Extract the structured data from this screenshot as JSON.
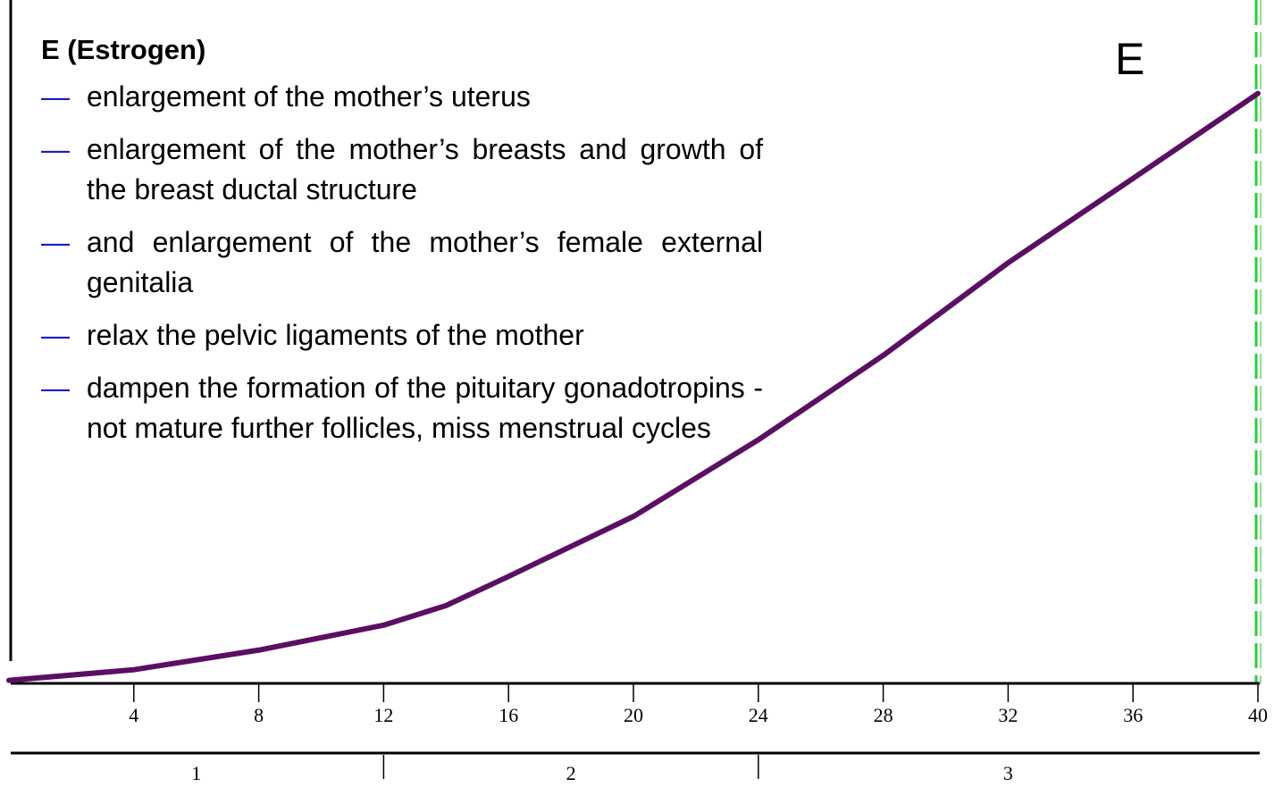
{
  "chart_data": {
    "type": "line",
    "title": "E (Estrogen)",
    "label": "E",
    "notes": [
      "enlargement of the mother’s uterus",
      "enlargement of the mother’s breasts and growth of the breast ductal structure",
      "and enlargement of the mother’s female external genitalia",
      " relax the pelvic ligaments of the mother",
      "dampen the formation of the pituitary gonadotropins - not mature further follicles, miss menstrual cycles"
    ],
    "x": [
      0,
      4,
      8,
      12,
      14,
      16,
      20,
      24,
      28,
      32,
      36,
      40
    ],
    "series": [
      {
        "name": "Estrogen",
        "color": "#5b0f63",
        "values": [
          0.5,
          2.3,
          5.6,
          9.8,
          13.1,
          18,
          28.1,
          41,
          55.2,
          70.8,
          85,
          99.3
        ]
      }
    ],
    "xlim": [
      0,
      40
    ],
    "xticks": [
      4,
      8,
      12,
      16,
      20,
      24,
      28,
      32,
      36,
      40
    ],
    "ylim": [
      0,
      100
    ],
    "trimesters": [
      "1",
      "2",
      "3"
    ],
    "trimester_bounds": [
      0,
      12,
      24,
      40
    ]
  }
}
